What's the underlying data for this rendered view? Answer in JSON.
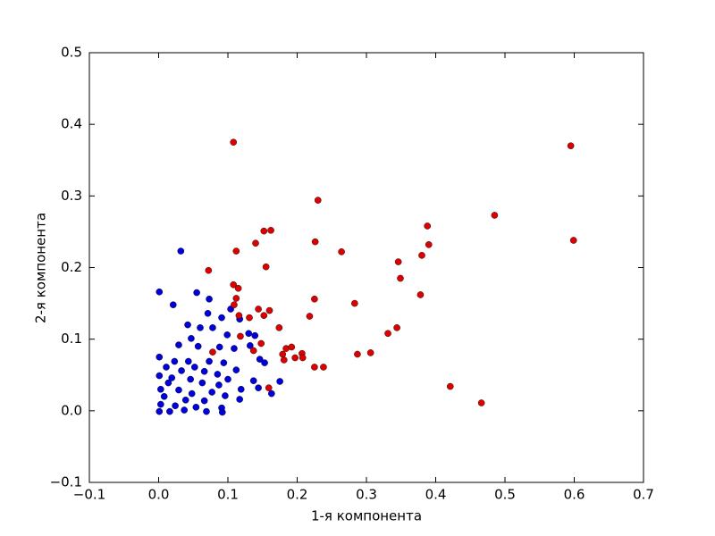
{
  "chart_data": {
    "type": "scatter",
    "xlabel": "1-я компонента",
    "ylabel": "2-я компонента",
    "xlim": [
      -0.1,
      0.7
    ],
    "ylim": [
      -0.1,
      0.5
    ],
    "xticks": [
      {
        "value": -0.1,
        "label": "−0.1"
      },
      {
        "value": 0,
        "label": "0.0"
      },
      0.1,
      0.2,
      0.3,
      0.4,
      0.5,
      0.6,
      0.7
    ],
    "yticks": [
      {
        "value": -0.1,
        "label": "−0.1"
      },
      {
        "value": 0,
        "label": "0.0"
      },
      0.1,
      0.2,
      0.3,
      0.4,
      0.5
    ],
    "grid": false,
    "series": [
      {
        "color": "#0000dd",
        "x": [
          0.032,
          0.001,
          0.055,
          0.073,
          0.021,
          0.104,
          0.071,
          0.117,
          0.091,
          0.042,
          0.06,
          0.078,
          0.13,
          0.099,
          0.139,
          0.047,
          0.029,
          0.057,
          0.088,
          0.109,
          0.132,
          0.146,
          0.153,
          0.001,
          0.023,
          0.043,
          0.073,
          0.094,
          0.011,
          0.052,
          0.112,
          0.033,
          0.066,
          0.085,
          0.001,
          0.019,
          0.046,
          0.1,
          0.137,
          0.175,
          0.014,
          0.063,
          0.087,
          0.119,
          0.144,
          0.163,
          0.003,
          0.029,
          0.048,
          0.077,
          0.096,
          0.008,
          0.039,
          0.066,
          0.117,
          0.003,
          0.024,
          0.054,
          0.091,
          0.001,
          0.016,
          0.037,
          0.069,
          0.092
        ],
        "values": [
          0.223,
          0.166,
          0.165,
          0.156,
          0.148,
          0.142,
          0.136,
          0.128,
          0.13,
          0.12,
          0.116,
          0.116,
          0.108,
          0.106,
          0.105,
          0.101,
          0.092,
          0.09,
          0.089,
          0.087,
          0.091,
          0.072,
          0.067,
          0.075,
          0.069,
          0.069,
          0.069,
          0.067,
          0.061,
          0.061,
          0.057,
          0.056,
          0.055,
          0.051,
          0.049,
          0.046,
          0.044,
          0.044,
          0.042,
          0.041,
          0.039,
          0.039,
          0.036,
          0.03,
          0.032,
          0.024,
          0.03,
          0.029,
          0.024,
          0.026,
          0.021,
          0.02,
          0.015,
          0.014,
          0.016,
          0.009,
          0.007,
          0.005,
          0.004,
          -0.001,
          -0.001,
          0.001,
          -0.001,
          -0.002
        ]
      },
      {
        "color": "#dd0000",
        "x": [
          0.108,
          0.595,
          0.599,
          0.485,
          0.23,
          0.388,
          0.39,
          0.38,
          0.346,
          0.349,
          0.378,
          0.264,
          0.226,
          0.162,
          0.152,
          0.14,
          0.112,
          0.155,
          0.072,
          0.108,
          0.115,
          0.112,
          0.109,
          0.225,
          0.283,
          0.144,
          0.16,
          0.152,
          0.218,
          0.116,
          0.131,
          0.174,
          0.344,
          0.331,
          0.118,
          0.148,
          0.184,
          0.192,
          0.179,
          0.207,
          0.208,
          0.197,
          0.181,
          0.137,
          0.287,
          0.306,
          0.225,
          0.238,
          0.159,
          0.421,
          0.466,
          0.078
        ],
        "values": [
          0.375,
          0.37,
          0.238,
          0.273,
          0.294,
          0.258,
          0.232,
          0.217,
          0.208,
          0.185,
          0.162,
          0.222,
          0.236,
          0.252,
          0.251,
          0.234,
          0.223,
          0.201,
          0.196,
          0.176,
          0.171,
          0.157,
          0.148,
          0.156,
          0.15,
          0.142,
          0.14,
          0.133,
          0.132,
          0.133,
          0.13,
          0.116,
          0.116,
          0.108,
          0.104,
          0.094,
          0.087,
          0.089,
          0.079,
          0.08,
          0.074,
          0.074,
          0.071,
          0.084,
          0.079,
          0.081,
          0.061,
          0.061,
          0.032,
          0.034,
          0.011,
          0.082
        ]
      }
    ]
  }
}
